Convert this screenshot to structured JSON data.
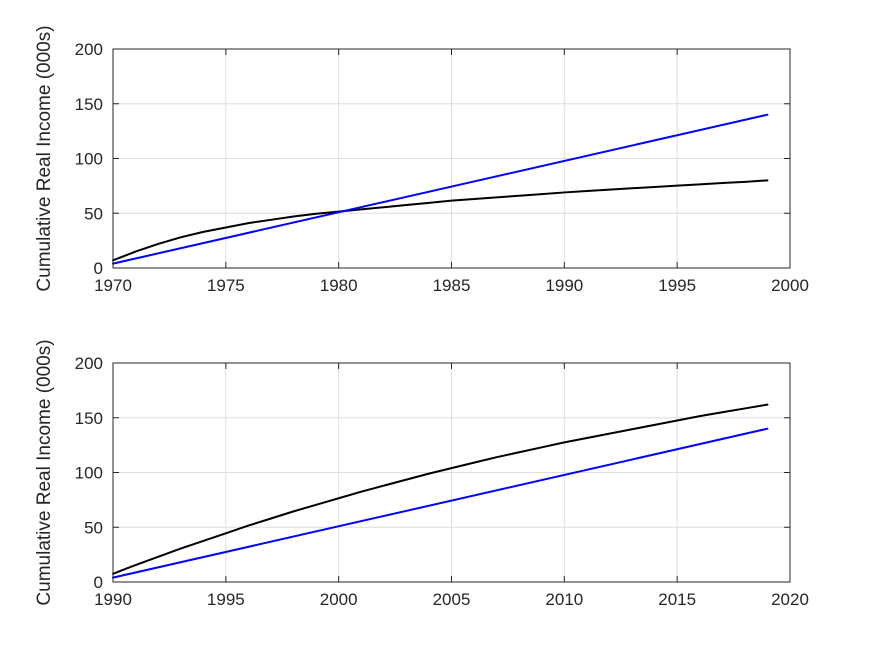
{
  "chart_data": [
    {
      "type": "line",
      "title": "",
      "xlabel": "",
      "ylabel": "Cumulative Real Income (000s)",
      "xlim": [
        1970,
        2000
      ],
      "ylim": [
        0,
        200
      ],
      "xticks": [
        "1970",
        "1975",
        "1980",
        "1985",
        "1990",
        "1995",
        "2000"
      ],
      "yticks": [
        "0",
        "50",
        "100",
        "150",
        "200"
      ],
      "grid": true,
      "legend": "none",
      "series": [
        {
          "color": "#000000",
          "x": [
            1970,
            1971,
            1972,
            1973,
            1974,
            1975,
            1976,
            1977,
            1978,
            1979,
            1980,
            1981,
            1982,
            1983,
            1984,
            1985,
            1986,
            1987,
            1988,
            1989,
            1990,
            1991,
            1992,
            1993,
            1994,
            1995,
            1996,
            1997,
            1998,
            1999
          ],
          "values": [
            7,
            15,
            22,
            28,
            33,
            37,
            41,
            44,
            47,
            49.5,
            51.5,
            53.5,
            55.5,
            57.5,
            59.5,
            61.5,
            63,
            64.5,
            66,
            67.5,
            69,
            70.3,
            71.6,
            72.8,
            74,
            75.2,
            76.4,
            77.6,
            78.7,
            80
          ]
        },
        {
          "color": "#0000ff",
          "x": [
            1970,
            1999
          ],
          "values": [
            4,
            140
          ]
        }
      ]
    },
    {
      "type": "line",
      "title": "",
      "xlabel": "",
      "ylabel": "Cumulative Real Income (000s)",
      "xlim": [
        1990,
        2020
      ],
      "ylim": [
        0,
        200
      ],
      "xticks": [
        "1990",
        "1995",
        "2000",
        "2005",
        "2010",
        "2015",
        "2020"
      ],
      "yticks": [
        "0",
        "50",
        "100",
        "150",
        "200"
      ],
      "grid": true,
      "legend": "none",
      "series": [
        {
          "color": "#000000",
          "x": [
            1990,
            1991,
            1992,
            1993,
            1994,
            1995,
            1996,
            1997,
            1998,
            1999,
            2000,
            2001,
            2002,
            2003,
            2004,
            2005,
            2006,
            2007,
            2008,
            2009,
            2010,
            2011,
            2012,
            2013,
            2014,
            2015,
            2016,
            2017,
            2018,
            2019
          ],
          "values": [
            7.5,
            15.5,
            23,
            30.5,
            37.5,
            44.5,
            51.5,
            58,
            64.5,
            70.5,
            76.5,
            82.5,
            88,
            93.5,
            99,
            104,
            109,
            114,
            118.5,
            123,
            127.5,
            131.5,
            135.5,
            139.5,
            143.5,
            147.5,
            151.5,
            155,
            158.5,
            162
          ]
        },
        {
          "color": "#0000ff",
          "x": [
            1990,
            2019
          ],
          "values": [
            4,
            140
          ]
        }
      ]
    }
  ]
}
